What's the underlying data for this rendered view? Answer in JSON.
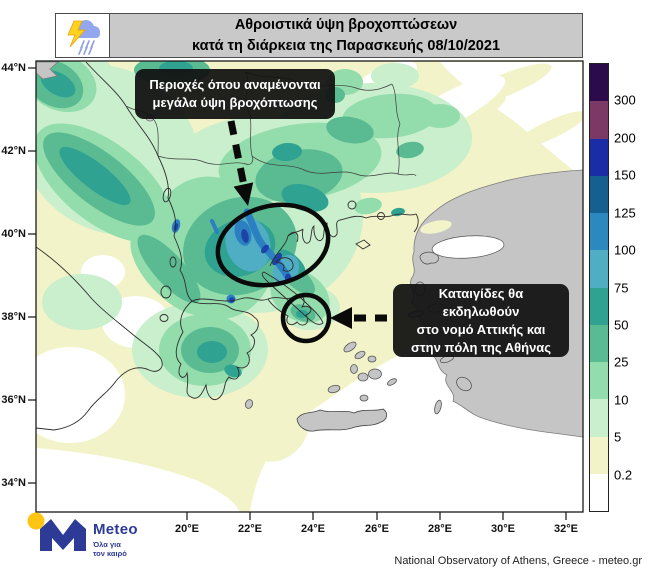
{
  "header": {
    "icon": "storm-cloud-lightning-rain-icon",
    "title_line1": "Αθροιστικά ύψη βροχοπτώσεων",
    "title_line2": "κατά τη διάρκεια της Παρασκευής 08/10/2021",
    "bar_color": "#c9c9c9"
  },
  "map": {
    "x_axis_ticks": [
      "20°E",
      "22°E",
      "24°E",
      "26°E",
      "28°E",
      "30°E",
      "32°E"
    ],
    "y_axis_ticks": [
      "44°N",
      "42°N",
      "40°N",
      "38°N",
      "36°N",
      "34°N"
    ]
  },
  "colorbar": {
    "labels_top_to_bottom": [
      "300",
      "200",
      "150",
      "125",
      "100",
      "75",
      "50",
      "25",
      "10",
      "5",
      "0.2"
    ],
    "colors_top_to_bottom": [
      "#2d0a4c",
      "#7c3867",
      "#1b2da6",
      "#16608f",
      "#2c89c0",
      "#4fadc4",
      "#2fa292",
      "#5abb92",
      "#93dcab",
      "#c9efcc",
      "#f2f3c8",
      "#ffffff"
    ]
  },
  "annotations": {
    "box1_line1": "Περιοχές όπου αναμένονται",
    "box1_line2": "μεγάλα ύψη βροχόπτωσης",
    "box2_line1": "Καταιγίδες θα εκδηλωθούν",
    "box2_line2": "στο νομό Αττικής και",
    "box2_line3": "στην πόλη της Αθήνας"
  },
  "logo": {
    "brand": "Meteo",
    "tagline_line1": "Όλα για",
    "tagline_line2": "τον καιρό",
    "brand_color": "#2d3a96",
    "dot_color": "#ffc512"
  },
  "attribution": "National Observatory of Athens, Greece - meteo.gr",
  "chart_data": {
    "type": "heatmap",
    "title": "Αθροιστικά ύψη βροχοπτώσεων κατά τη διάρκεια της Παρασκευής 08/10/2021",
    "x_axis": {
      "ticks": [
        "20°E",
        "22°E",
        "24°E",
        "26°E",
        "28°E",
        "30°E",
        "32°E"
      ]
    },
    "y_axis": {
      "ticks": [
        "44°N",
        "42°N",
        "40°N",
        "38°N",
        "36°N",
        "34°N"
      ]
    },
    "scale_levels": [
      0.2,
      5,
      10,
      25,
      50,
      75,
      100,
      125,
      150,
      200,
      300
    ],
    "scale_colors_low_to_high": [
      "#ffffff",
      "#f2f3c8",
      "#c9efcc",
      "#93dcab",
      "#5abb92",
      "#2fa292",
      "#4fadc4",
      "#2c89c0",
      "#16608f",
      "#1b2da6",
      "#7c3867",
      "#2d0a4c"
    ],
    "legend_position": "right",
    "highlighted_regions": [
      {
        "marker": "large-ellipse",
        "label": "Περιοχές όπου αναμένονται μεγάλα ύψη βροχόπτωσης"
      },
      {
        "marker": "small-circle",
        "label": "Καταιγίδες θα εκδηλωθούν στο νομό Αττικής και στην πόλη της Αθήνας"
      }
    ]
  }
}
